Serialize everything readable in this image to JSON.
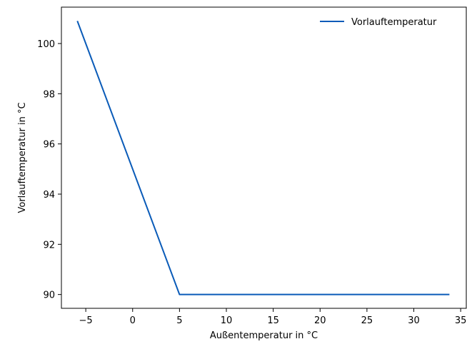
{
  "chart_data": {
    "type": "line",
    "xlabel": "Außentemperatur in °C",
    "ylabel": "Vorlauftemperatur in °C",
    "xlim": [
      -7.6,
      35.6
    ],
    "ylim": [
      89.45,
      101.45
    ],
    "xticks": [
      -5,
      0,
      5,
      10,
      15,
      20,
      25,
      30,
      35
    ],
    "xtick_labels": [
      "−5",
      "0",
      "5",
      "10",
      "15",
      "20",
      "25",
      "30",
      "35"
    ],
    "yticks": [
      90,
      92,
      94,
      96,
      98,
      100
    ],
    "ytick_labels": [
      "90",
      "92",
      "94",
      "96",
      "98",
      "100"
    ],
    "grid": false,
    "legend_position": "top-right",
    "series": [
      {
        "name": "Vorlauftemperatur",
        "color": "#0a5bb8",
        "x": [
          -5.9,
          5.0,
          33.8
        ],
        "y": [
          100.9,
          90.0,
          90.0
        ]
      }
    ]
  }
}
